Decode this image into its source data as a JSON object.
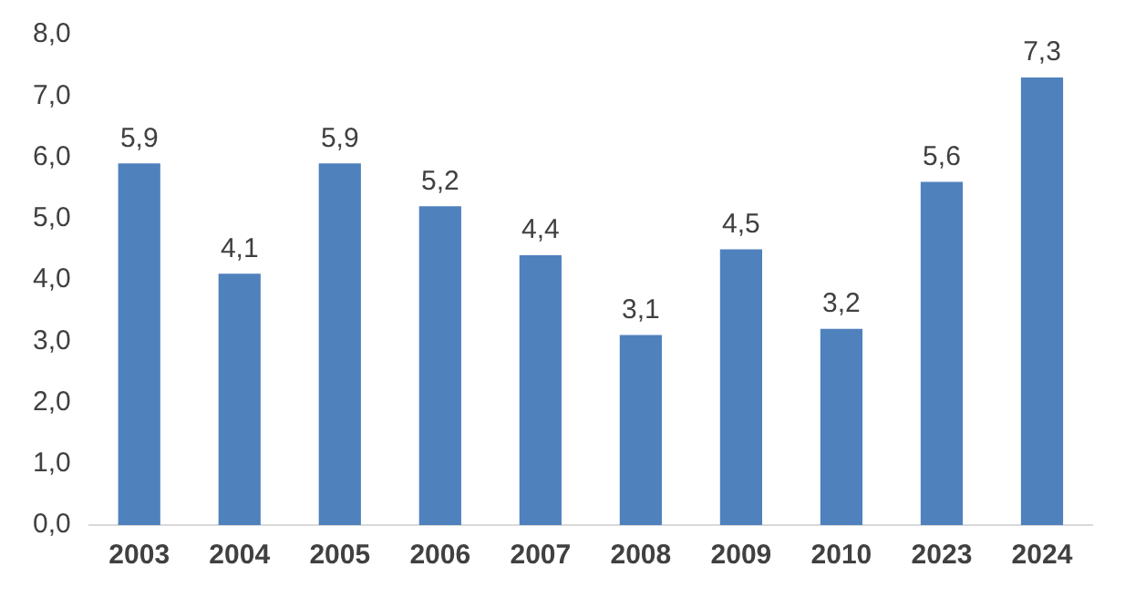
{
  "chart_data": {
    "type": "bar",
    "categories": [
      "2003",
      "2004",
      "2005",
      "2006",
      "2007",
      "2008",
      "2009",
      "2010",
      "2023",
      "2024"
    ],
    "values": [
      5.9,
      4.1,
      5.9,
      5.2,
      4.4,
      3.1,
      4.5,
      3.2,
      5.6,
      7.3
    ],
    "value_labels": [
      "5,9",
      "4,1",
      "5,9",
      "5,2",
      "4,4",
      "3,1",
      "4,5",
      "3,2",
      "5,6",
      "7,3"
    ],
    "color": "#4f81bd",
    "ylim": [
      0,
      8
    ],
    "yticks": [
      {
        "value": 0,
        "label": "0,0"
      },
      {
        "value": 1,
        "label": "1,0"
      },
      {
        "value": 2,
        "label": "2,0"
      },
      {
        "value": 3,
        "label": "3,0"
      },
      {
        "value": 4,
        "label": "4,0"
      },
      {
        "value": 5,
        "label": "5,0"
      },
      {
        "value": 6,
        "label": "6,0"
      },
      {
        "value": 7,
        "label": "7,0"
      },
      {
        "value": 8,
        "label": "8,0"
      }
    ],
    "grid": false,
    "legend": false
  }
}
